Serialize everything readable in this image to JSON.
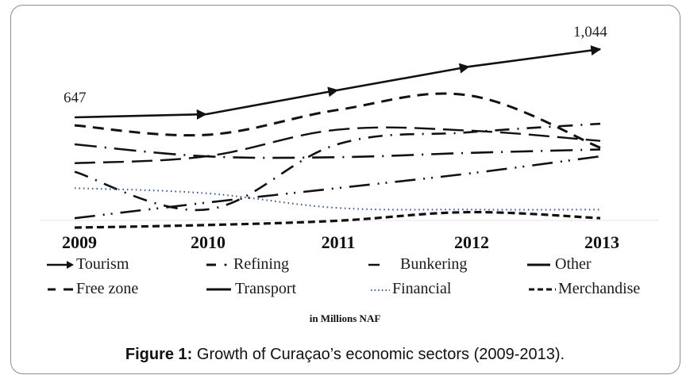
{
  "chart_data": {
    "type": "line",
    "title": "Growth of Curaçao’s economic sectors (2009-2013).",
    "figure_label": "Figure 1:",
    "units_label": "in Millions NAF",
    "xlabel": "",
    "ylabel": "",
    "x": [
      "2009",
      "2010",
      "2011",
      "2012",
      "2013"
    ],
    "ylim": [
      0,
      1100
    ],
    "grid": false,
    "legend_position": "bottom",
    "annotations": [
      {
        "text": "647",
        "series": "Tourism",
        "x": "2009"
      },
      {
        "text": "1,044",
        "series": "Tourism",
        "x": "2013"
      }
    ],
    "series": [
      {
        "name": "Tourism",
        "style": "solid-arrow",
        "color": "#111111",
        "values": [
          647,
          665,
          805,
          942,
          1044
        ]
      },
      {
        "name": "Free zone",
        "style": "dashed",
        "color": "#111111",
        "values": [
          600,
          545,
          690,
          775,
          470
        ]
      },
      {
        "name": "Bunkering",
        "style": "long-dash",
        "color": "#111111",
        "values": [
          380,
          420,
          575,
          570,
          510
        ]
      },
      {
        "name": "Other",
        "style": "long-dash-dot",
        "color": "#111111",
        "values": [
          490,
          420,
          415,
          440,
          460
        ]
      },
      {
        "name": "Refining",
        "style": "dash-dot",
        "color": "#111111",
        "values": [
          330,
          110,
          490,
          560,
          610
        ]
      },
      {
        "name": "Transport",
        "style": "long-dash-dot-dot",
        "color": "#111111",
        "values": [
          60,
          150,
          235,
          320,
          420
        ]
      },
      {
        "name": "Financial",
        "style": "dotted",
        "color": "#2e4f8a",
        "values": [
          235,
          205,
          120,
          110,
          110
        ]
      },
      {
        "name": "Merchandise",
        "style": "short-dash-bold",
        "color": "#111111",
        "values": [
          5,
          20,
          45,
          95,
          60
        ]
      }
    ]
  },
  "legend": {
    "items": [
      {
        "label": "Tourism",
        "glyph": "arrow"
      },
      {
        "label": "Refining",
        "glyph": "dash-dot"
      },
      {
        "label": "Bunkering",
        "glyph": "dash"
      },
      {
        "label": "Other",
        "glyph": "solid"
      },
      {
        "label": "Free zone",
        "glyph": "dash-dash"
      },
      {
        "label": "Transport",
        "glyph": "solid"
      },
      {
        "label": "Financial",
        "glyph": "dotted"
      },
      {
        "label": "Merchandise",
        "glyph": "dash-dash-dash"
      }
    ]
  }
}
